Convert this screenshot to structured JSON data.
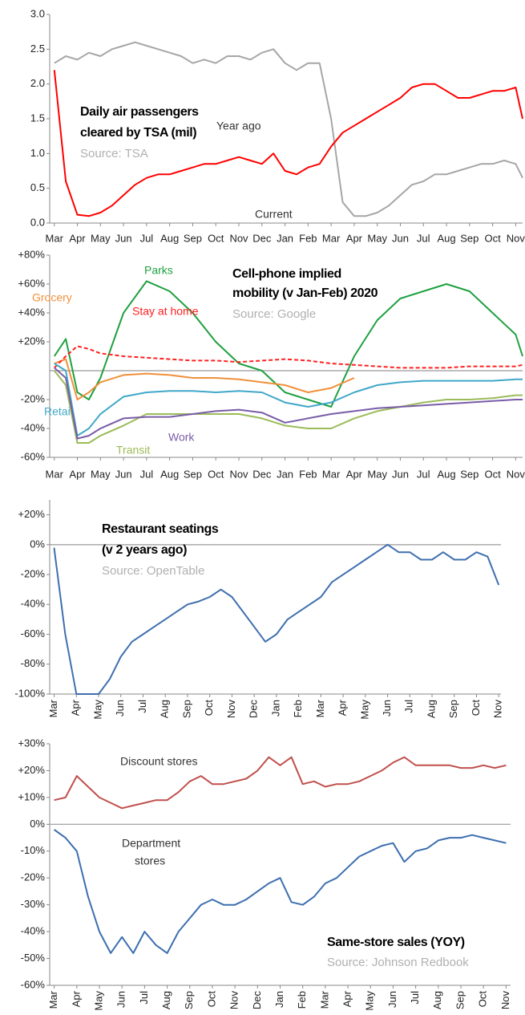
{
  "chart_data": [
    {
      "type": "line",
      "title": [
        "Daily air passengers",
        "cleared by TSA (mil)"
      ],
      "source": "Source: TSA",
      "annotations": [
        "Year ago",
        "Current"
      ],
      "x": [
        0,
        0.5,
        1,
        1.5,
        2,
        2.5,
        3,
        3.5,
        4,
        4.5,
        5,
        5.5,
        6,
        6.5,
        7,
        7.5,
        8,
        8.5,
        9,
        9.5,
        10,
        10.5,
        11,
        11.5,
        12,
        12.5,
        13,
        13.5,
        14,
        14.5,
        15,
        15.5,
        16,
        16.5,
        17,
        17.5,
        18,
        18.5,
        19,
        19.5,
        20,
        20.3
      ],
      "xlim": [
        -0.2,
        20.3
      ],
      "xticks": [
        {
          "value": 0,
          "label": "Mar"
        },
        {
          "value": 1,
          "label": "Apr"
        },
        {
          "value": 2,
          "label": "May"
        },
        {
          "value": 3,
          "label": "Jun"
        },
        {
          "value": 4,
          "label": "Jul"
        },
        {
          "value": 5,
          "label": "Aug"
        },
        {
          "value": 6,
          "label": "Sep"
        },
        {
          "value": 7,
          "label": "Oct"
        },
        {
          "value": 8,
          "label": "Nov"
        },
        {
          "value": 9,
          "label": "Dec"
        },
        {
          "value": 10,
          "label": "Jan"
        },
        {
          "value": 11,
          "label": "Feb"
        },
        {
          "value": 12,
          "label": "Mar"
        },
        {
          "value": 13,
          "label": "Apr"
        },
        {
          "value": 14,
          "label": "May"
        },
        {
          "value": 15,
          "label": "Jun"
        },
        {
          "value": 16,
          "label": "Jul"
        },
        {
          "value": 17,
          "label": "Aug"
        },
        {
          "value": 18,
          "label": "Sep"
        },
        {
          "value": 19,
          "label": "Oct"
        },
        {
          "value": 20,
          "label": "Nov"
        }
      ],
      "ylim": [
        0,
        3
      ],
      "yticks": [
        {
          "value": 0,
          "label": "0.0"
        },
        0.5,
        {
          "value": 1,
          "label": "1.0"
        },
        1.5,
        {
          "value": 2,
          "label": "2.0"
        },
        2.5,
        {
          "value": 3,
          "label": "3.0"
        }
      ],
      "series": [
        {
          "name": "Year ago",
          "color": "#a6a6a6",
          "values": [
            2.3,
            2.4,
            2.35,
            2.45,
            2.4,
            2.5,
            2.55,
            2.6,
            2.55,
            2.5,
            2.45,
            2.4,
            2.3,
            2.35,
            2.3,
            2.4,
            2.4,
            2.35,
            2.45,
            2.5,
            2.3,
            2.2,
            2.3,
            2.3,
            1.5,
            0.3,
            0.1,
            0.1,
            0.15,
            0.25,
            0.4,
            0.55,
            0.6,
            0.7,
            0.7,
            0.75,
            0.8,
            0.85,
            0.85,
            0.9,
            0.85,
            0.65
          ]
        },
        {
          "name": "Current",
          "color": "#ff0000",
          "values": [
            2.2,
            0.6,
            0.12,
            0.1,
            0.15,
            0.25,
            0.4,
            0.55,
            0.65,
            0.7,
            0.7,
            0.75,
            0.8,
            0.85,
            0.85,
            0.9,
            0.95,
            0.9,
            0.85,
            1.0,
            0.75,
            0.7,
            0.8,
            0.85,
            1.1,
            1.3,
            1.4,
            1.5,
            1.6,
            1.7,
            1.8,
            1.95,
            2.0,
            2.0,
            1.9,
            1.8,
            1.8,
            1.85,
            1.9,
            1.9,
            1.95,
            1.5
          ]
        }
      ]
    },
    {
      "type": "line",
      "title": [
        "Cell-phone implied",
        "mobility (v Jan-Feb) 2020"
      ],
      "source": "Source: Google",
      "zero_line": true,
      "x": [
        0,
        0.5,
        1,
        1.5,
        2,
        3,
        4,
        5,
        6,
        7,
        8,
        9,
        10,
        11,
        12,
        13,
        14,
        15,
        16,
        17,
        18,
        19,
        20,
        20.3
      ],
      "xlim": [
        -0.2,
        20.3
      ],
      "xticks": [
        {
          "value": 0,
          "label": "Mar"
        },
        {
          "value": 1,
          "label": "Apr"
        },
        {
          "value": 2,
          "label": "May"
        },
        {
          "value": 3,
          "label": "Jun"
        },
        {
          "value": 4,
          "label": "Jul"
        },
        {
          "value": 5,
          "label": "Aug"
        },
        {
          "value": 6,
          "label": "Sep"
        },
        {
          "value": 7,
          "label": "Oct"
        },
        {
          "value": 8,
          "label": "Nov"
        },
        {
          "value": 9,
          "label": "Dec"
        },
        {
          "value": 10,
          "label": "Jan"
        },
        {
          "value": 11,
          "label": "Feb"
        },
        {
          "value": 12,
          "label": "Mar"
        },
        {
          "value": 13,
          "label": "Apr"
        },
        {
          "value": 14,
          "label": "May"
        },
        {
          "value": 15,
          "label": "Jun"
        },
        {
          "value": 16,
          "label": "Jul"
        },
        {
          "value": 17,
          "label": "Aug"
        },
        {
          "value": 18,
          "label": "Sep"
        },
        {
          "value": 19,
          "label": "Oct"
        },
        {
          "value": 20,
          "label": "Nov"
        }
      ],
      "ylim": [
        -60,
        80
      ],
      "yticks": [
        {
          "value": 80,
          "label": "+80%"
        },
        {
          "value": 60,
          "label": "+60%"
        },
        {
          "value": 40,
          "label": "+40%"
        },
        {
          "value": 20,
          "label": "+20%"
        },
        {
          "value": -20,
          "label": "-20%"
        },
        {
          "value": -40,
          "label": "-40%"
        },
        {
          "value": -60,
          "label": "-60%"
        }
      ],
      "series": [
        {
          "name": "Parks",
          "color": "#1fa040",
          "values": [
            10,
            22,
            -15,
            -20,
            -5,
            40,
            62,
            55,
            40,
            20,
            5,
            0,
            -15,
            -20,
            -25,
            10,
            35,
            50,
            55,
            60,
            55,
            40,
            25,
            10
          ]
        },
        {
          "name": "Grocery",
          "color": "#f0903a",
          "values": [
            5,
            8,
            -20,
            -15,
            -8,
            -3,
            -2,
            -3,
            -5,
            -5,
            -6,
            -8,
            -10,
            -15,
            -12,
            -5,
            null,
            null,
            null,
            null,
            null,
            null,
            null,
            null
          ]
        },
        {
          "name": "Stay at home",
          "color": "#ff2020",
          "dash": true,
          "values": [
            2,
            10,
            17,
            15,
            12,
            10,
            9,
            8,
            7,
            7,
            6,
            7,
            8,
            7,
            5,
            4,
            3,
            2,
            2,
            2,
            3,
            3,
            3,
            4
          ]
        },
        {
          "name": "Retail",
          "color": "#40a8c8",
          "values": [
            5,
            0,
            -45,
            -40,
            -30,
            -18,
            -15,
            -14,
            -14,
            -15,
            -14,
            -15,
            -22,
            -25,
            -22,
            -15,
            -10,
            -8,
            -7,
            -7,
            -7,
            -7,
            -6,
            -6
          ]
        },
        {
          "name": "Transit",
          "color": "#9bbb59",
          "values": [
            0,
            -10,
            -50,
            -50,
            -45,
            -38,
            -30,
            -30,
            -30,
            -30,
            -30,
            -33,
            -38,
            -40,
            -40,
            -33,
            -28,
            -25,
            -22,
            -20,
            -20,
            -19,
            -17,
            -17
          ]
        },
        {
          "name": "Work",
          "color": "#7a5ca8",
          "values": [
            2,
            -5,
            -47,
            -45,
            -40,
            -33,
            -32,
            -32,
            -30,
            -28,
            -27,
            -29,
            -36,
            -33,
            -30,
            -28,
            -26,
            -25,
            -24,
            -23,
            -22,
            -21,
            -20,
            -20
          ]
        }
      ]
    },
    {
      "type": "line",
      "title": [
        "Restaurant seatings",
        "(v 2 years ago)"
      ],
      "source": "Source: OpenTable",
      "zero_line": true,
      "rotate_x_labels": true,
      "x": [
        0,
        0.5,
        1,
        1.5,
        2,
        2.5,
        3,
        3.5,
        4,
        4.5,
        5,
        5.5,
        6,
        6.5,
        7,
        7.5,
        8,
        8.5,
        9,
        9.5,
        10,
        10.5,
        11,
        11.5,
        12,
        12.5,
        13,
        13.5,
        14,
        14.5,
        15,
        15.5,
        16,
        16.5,
        17,
        17.5,
        18,
        18.5,
        19,
        19.5,
        20
      ],
      "xlim": [
        -0.2,
        20.1
      ],
      "xticks": [
        {
          "value": 0,
          "label": "Mar"
        },
        {
          "value": 1,
          "label": "Apr"
        },
        {
          "value": 2,
          "label": "May"
        },
        {
          "value": 3,
          "label": "Jun"
        },
        {
          "value": 4,
          "label": "Jul"
        },
        {
          "value": 5,
          "label": "Aug"
        },
        {
          "value": 6,
          "label": "Sep"
        },
        {
          "value": 7,
          "label": "Oct"
        },
        {
          "value": 8,
          "label": "Nov"
        },
        {
          "value": 9,
          "label": "Dec"
        },
        {
          "value": 10,
          "label": "Jan"
        },
        {
          "value": 11,
          "label": "Feb"
        },
        {
          "value": 12,
          "label": "Mar"
        },
        {
          "value": 13,
          "label": "Apr"
        },
        {
          "value": 14,
          "label": "May"
        },
        {
          "value": 15,
          "label": "Jun"
        },
        {
          "value": 16,
          "label": "Jul"
        },
        {
          "value": 17,
          "label": "Aug"
        },
        {
          "value": 18,
          "label": "Sep"
        },
        {
          "value": 19,
          "label": "Oct"
        },
        {
          "value": 20,
          "label": "Nov"
        }
      ],
      "ylim": [
        -100,
        30
      ],
      "yticks": [
        {
          "value": 20,
          "label": "+20%"
        },
        {
          "value": 0,
          "label": "0%"
        },
        {
          "value": -20,
          "label": "-20%"
        },
        {
          "value": -40,
          "label": "-40%"
        },
        {
          "value": -60,
          "label": "-60%"
        },
        {
          "value": -80,
          "label": "-80%"
        },
        {
          "value": -100,
          "label": "-100%"
        }
      ],
      "series": [
        {
          "name": "Restaurant seatings",
          "color": "#3f6faf",
          "values": [
            -2,
            -60,
            -100,
            -100,
            -100,
            -90,
            -75,
            -65,
            -60,
            -55,
            -50,
            -45,
            -40,
            -38,
            -35,
            -30,
            -35,
            -45,
            -55,
            -65,
            -60,
            -50,
            -45,
            -40,
            -35,
            -25,
            -20,
            -15,
            -10,
            -5,
            0,
            -5,
            -5,
            -10,
            -10,
            -5,
            -10,
            -10,
            -5,
            -8,
            -27
          ]
        }
      ]
    },
    {
      "type": "line",
      "title": [
        "Same-store sales (YOY)"
      ],
      "source": "Source: Johnson Redbook",
      "annotations": [
        "Discount stores",
        "Department",
        "stores"
      ],
      "zero_line": true,
      "rotate_x_labels": true,
      "x": [
        0,
        0.5,
        1,
        1.5,
        2,
        2.5,
        3,
        3.5,
        4,
        4.5,
        5,
        5.5,
        6,
        6.5,
        7,
        7.5,
        8,
        8.5,
        9,
        9.5,
        10,
        10.5,
        11,
        11.5,
        12,
        12.5,
        13,
        13.5,
        14,
        14.5,
        15,
        15.5,
        16,
        16.5,
        17,
        17.5,
        18,
        18.5,
        19,
        19.5,
        20
      ],
      "xlim": [
        -0.2,
        20.2
      ],
      "xticks": [
        {
          "value": 0,
          "label": "Mar"
        },
        {
          "value": 1,
          "label": "Apr"
        },
        {
          "value": 2,
          "label": "May"
        },
        {
          "value": 3,
          "label": "Jun"
        },
        {
          "value": 4,
          "label": "Jul"
        },
        {
          "value": 5,
          "label": "Aug"
        },
        {
          "value": 6,
          "label": "Sep"
        },
        {
          "value": 7,
          "label": "Oct"
        },
        {
          "value": 8,
          "label": "Nov"
        },
        {
          "value": 9,
          "label": "Dec"
        },
        {
          "value": 10,
          "label": "Jan"
        },
        {
          "value": 11,
          "label": "Feb"
        },
        {
          "value": 12,
          "label": "Mar"
        },
        {
          "value": 13,
          "label": "Apr"
        },
        {
          "value": 14,
          "label": "May"
        },
        {
          "value": 15,
          "label": "Jun"
        },
        {
          "value": 16,
          "label": "Jul"
        },
        {
          "value": 17,
          "label": "Aug"
        },
        {
          "value": 18,
          "label": "Sep"
        },
        {
          "value": 19,
          "label": "Oct"
        },
        {
          "value": 20,
          "label": "Nov"
        }
      ],
      "ylim": [
        -60,
        30
      ],
      "yticks": [
        {
          "value": 30,
          "label": "+30%"
        },
        {
          "value": 20,
          "label": "+20%"
        },
        {
          "value": 10,
          "label": "+10%"
        },
        {
          "value": 0,
          "label": "0%"
        },
        {
          "value": -10,
          "label": "-10%"
        },
        {
          "value": -20,
          "label": "-20%"
        },
        {
          "value": -30,
          "label": "-30%"
        },
        {
          "value": -40,
          "label": "-40%"
        },
        {
          "value": -50,
          "label": "-50%"
        },
        {
          "value": -60,
          "label": "-60%"
        }
      ],
      "series": [
        {
          "name": "Discount stores",
          "color": "#c0504d",
          "values": [
            9,
            10,
            18,
            14,
            10,
            8,
            6,
            7,
            8,
            9,
            9,
            12,
            16,
            18,
            15,
            15,
            16,
            17,
            20,
            25,
            22,
            25,
            15,
            16,
            14,
            15,
            15,
            16,
            18,
            20,
            23,
            25,
            22,
            22,
            22,
            22,
            21,
            21,
            22,
            21,
            22
          ]
        },
        {
          "name": "Department stores",
          "color": "#3d6fb0",
          "values": [
            -2,
            -5,
            -10,
            -27,
            -40,
            -48,
            -42,
            -48,
            -40,
            -45,
            -48,
            -40,
            -35,
            -30,
            -28,
            -30,
            -30,
            -28,
            -25,
            -22,
            -20,
            -29,
            -30,
            -27,
            -22,
            -20,
            -16,
            -12,
            -10,
            -8,
            -7,
            -14,
            -10,
            -9,
            -6,
            -5,
            -5,
            -4,
            -5,
            -6,
            -7
          ]
        }
      ]
    }
  ]
}
